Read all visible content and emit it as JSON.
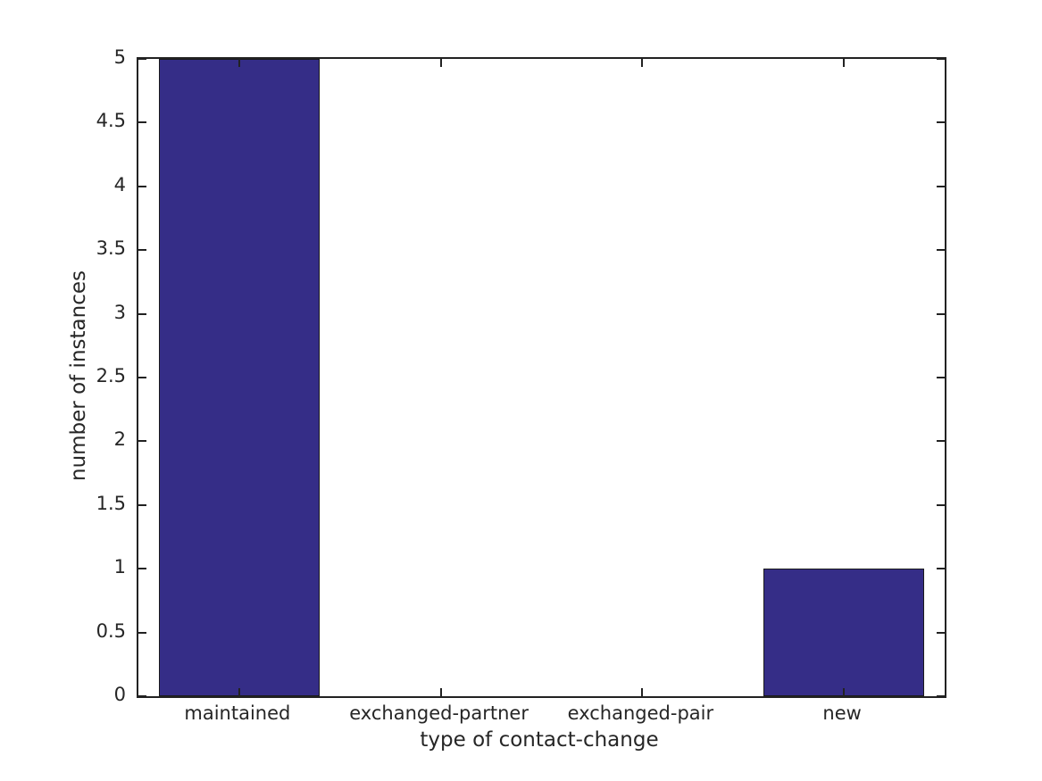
{
  "chart_data": {
    "type": "bar",
    "title": "",
    "xlabel": "type of contact-change",
    "ylabel": "number of instances",
    "categories": [
      "maintained",
      "exchanged-partner",
      "exchanged-pair",
      "new"
    ],
    "values": [
      5,
      0,
      0,
      1
    ],
    "ylim": [
      0,
      5
    ],
    "yticks": [
      0,
      0.5,
      1,
      1.5,
      2,
      2.5,
      3,
      3.5,
      4,
      4.5,
      5
    ],
    "ytick_labels": [
      "0",
      "0.5",
      "1",
      "1.5",
      "2",
      "2.5",
      "3",
      "3.5",
      "4",
      "4.5",
      "5"
    ],
    "bar_width_ratio": 0.8,
    "legend": null,
    "grid": false,
    "box": true,
    "tick_direction": "in",
    "colors": {
      "bar_fill": "#352d87",
      "bar_edge": "#1a1a1a",
      "axis": "#222222",
      "text": "#262626",
      "background": "#ffffff"
    }
  }
}
